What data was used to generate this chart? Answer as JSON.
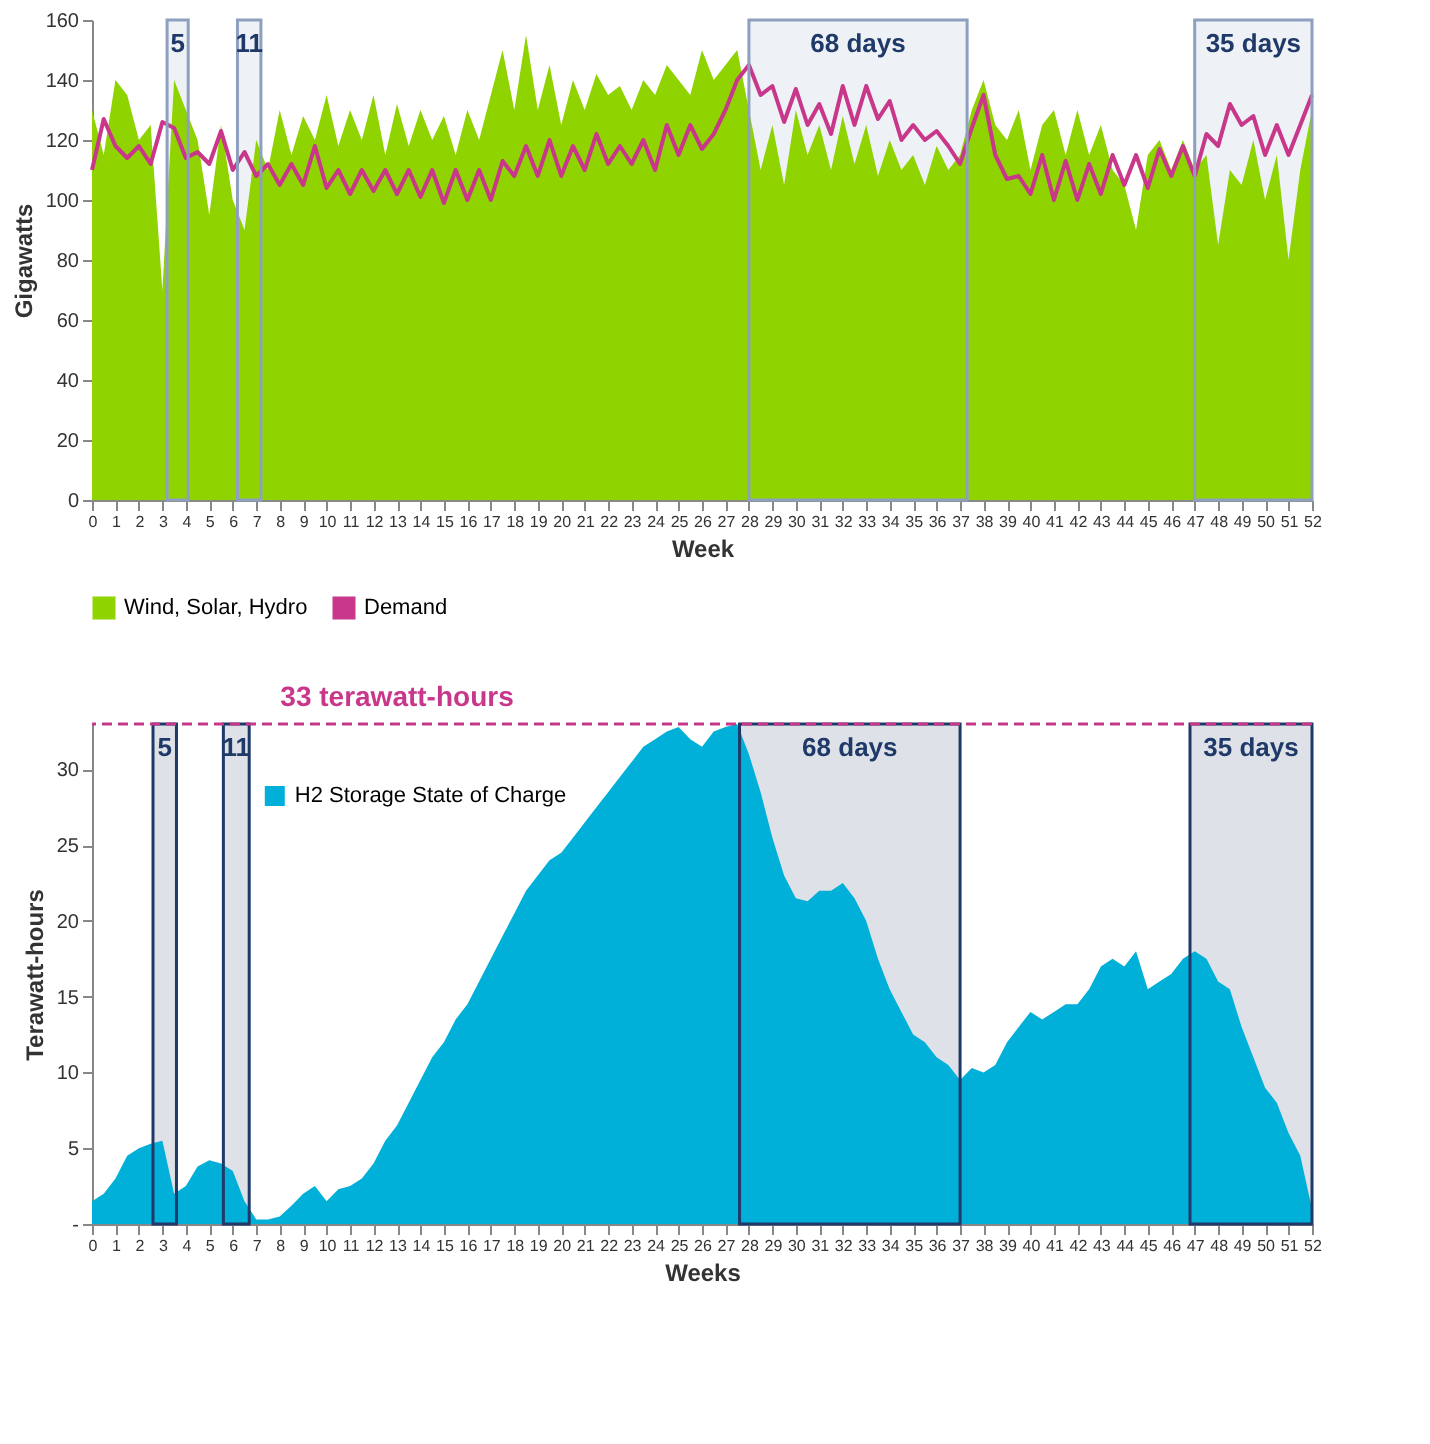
{
  "chart_data": [
    {
      "type": "area",
      "xlabel": "Week",
      "ylabel": "Gigawatts",
      "x": [
        0,
        0.5,
        1,
        1.5,
        2,
        2.5,
        3,
        3.5,
        4,
        4.5,
        5,
        5.5,
        6,
        6.5,
        7,
        7.5,
        8,
        8.5,
        9,
        9.5,
        10,
        10.5,
        11,
        11.5,
        12,
        12.5,
        13,
        13.5,
        14,
        14.5,
        15,
        15.5,
        16,
        16.5,
        17,
        17.5,
        18,
        18.5,
        19,
        19.5,
        20,
        20.5,
        21,
        21.5,
        22,
        22.5,
        23,
        23.5,
        24,
        24.5,
        25,
        25.5,
        26,
        26.5,
        27,
        27.5,
        28,
        28.5,
        29,
        29.5,
        30,
        30.5,
        31,
        31.5,
        32,
        32.5,
        33,
        33.5,
        34,
        34.5,
        35,
        35.5,
        36,
        36.5,
        37,
        37.5,
        38,
        38.5,
        39,
        39.5,
        40,
        40.5,
        41,
        41.5,
        42,
        42.5,
        43,
        43.5,
        44,
        44.5,
        45,
        45.5,
        46,
        46.5,
        47,
        47.5,
        48,
        48.5,
        49,
        49.5,
        50,
        50.5,
        51,
        51.5,
        52
      ],
      "series": [
        {
          "name": "Wind, Solar, Hydro",
          "type": "area",
          "color": "#8fd400",
          "values": [
            130,
            115,
            140,
            135,
            120,
            125,
            70,
            140,
            130,
            120,
            95,
            125,
            100,
            90,
            120,
            110,
            130,
            115,
            128,
            120,
            135,
            118,
            130,
            120,
            135,
            115,
            132,
            118,
            130,
            120,
            128,
            115,
            130,
            120,
            135,
            150,
            130,
            155,
            130,
            145,
            125,
            140,
            130,
            142,
            135,
            138,
            130,
            140,
            135,
            145,
            140,
            135,
            150,
            140,
            145,
            150,
            130,
            110,
            125,
            105,
            130,
            115,
            125,
            110,
            128,
            112,
            125,
            108,
            120,
            110,
            115,
            105,
            118,
            110,
            115,
            130,
            140,
            125,
            120,
            130,
            110,
            125,
            130,
            115,
            130,
            115,
            125,
            110,
            105,
            90,
            115,
            120,
            110,
            120,
            110,
            115,
            85,
            110,
            105,
            120,
            100,
            115,
            80,
            110,
            130
          ]
        },
        {
          "name": "Demand",
          "type": "line",
          "color": "#c8378a",
          "values": [
            110,
            127,
            118,
            114,
            118,
            112,
            126,
            124,
            114,
            116,
            112,
            123,
            110,
            116,
            108,
            112,
            105,
            112,
            105,
            118,
            104,
            110,
            102,
            110,
            103,
            110,
            102,
            110,
            101,
            110,
            99,
            110,
            100,
            110,
            100,
            113,
            108,
            118,
            108,
            120,
            108,
            118,
            110,
            122,
            112,
            118,
            112,
            120,
            110,
            125,
            115,
            125,
            117,
            122,
            130,
            140,
            145,
            135,
            138,
            126,
            137,
            125,
            132,
            122,
            138,
            125,
            138,
            127,
            133,
            120,
            125,
            120,
            123,
            118,
            112,
            124,
            135,
            115,
            107,
            108,
            102,
            115,
            100,
            113,
            100,
            112,
            102,
            115,
            105,
            115,
            104,
            117,
            108,
            118,
            108,
            122,
            118,
            132,
            125,
            128,
            115,
            125,
            115,
            125,
            135
          ]
        }
      ],
      "xlim": [
        0,
        52
      ],
      "xticks": [
        0,
        1,
        2,
        3,
        4,
        5,
        6,
        7,
        8,
        9,
        10,
        11,
        12,
        13,
        14,
        15,
        16,
        17,
        18,
        19,
        20,
        21,
        22,
        23,
        24,
        25,
        26,
        27,
        28,
        29,
        30,
        31,
        32,
        33,
        34,
        35,
        36,
        37,
        38,
        39,
        40,
        41,
        42,
        43,
        44,
        45,
        46,
        47,
        48,
        49,
        50,
        51,
        52
      ],
      "ylim": [
        0,
        160
      ],
      "yticks": [
        0,
        20,
        40,
        60,
        80,
        100,
        120,
        140,
        160
      ],
      "bands": [
        {
          "axis": "x",
          "from": 3.2,
          "to": 4.1,
          "label": "5",
          "color": "#8f9fbf"
        },
        {
          "axis": "x",
          "from": 6.2,
          "to": 7.2,
          "label": "11",
          "color": "#8f9fbf"
        },
        {
          "axis": "x",
          "from": 28,
          "to": 37.3,
          "label": "68 days",
          "color": "#8f9fbf"
        },
        {
          "axis": "x",
          "from": 47,
          "to": 52,
          "label": "35 days",
          "color": "#8f9fbf"
        }
      ],
      "legend": "bottom left",
      "grid": false
    },
    {
      "type": "area",
      "xlabel": "Weeks",
      "ylabel": "Terawatt-hours",
      "x": [
        0,
        0.5,
        1,
        1.5,
        2,
        2.5,
        3,
        3.5,
        4,
        4.5,
        5,
        5.5,
        6,
        6.5,
        7,
        7.5,
        8,
        8.5,
        9,
        9.5,
        10,
        10.5,
        11,
        11.5,
        12,
        12.5,
        13,
        13.5,
        14,
        14.5,
        15,
        15.5,
        16,
        16.5,
        17,
        17.5,
        18,
        18.5,
        19,
        19.5,
        20,
        20.5,
        21,
        21.5,
        22,
        22.5,
        23,
        23.5,
        24,
        24.5,
        25,
        25.5,
        26,
        26.5,
        27,
        27.5,
        28,
        28.5,
        29,
        29.5,
        30,
        30.5,
        31,
        31.5,
        32,
        32.5,
        33,
        33.5,
        34,
        34.5,
        35,
        35.5,
        36,
        36.5,
        37,
        37.5,
        38,
        38.5,
        39,
        39.5,
        40,
        40.5,
        41,
        41.5,
        42,
        42.5,
        43,
        43.5,
        44,
        44.5,
        45,
        45.5,
        46,
        46.5,
        47,
        47.5,
        48,
        48.5,
        49,
        49.5,
        50,
        50.5,
        51,
        51.5,
        52
      ],
      "series": [
        {
          "name": "H2 Storage State of Charge",
          "type": "area",
          "color": "#00b0d8",
          "values": [
            1.5,
            2,
            3,
            4.5,
            5,
            5.3,
            5.5,
            2,
            2.5,
            3.8,
            4.2,
            4,
            3.5,
            1.5,
            0.3,
            0.3,
            0.5,
            1.2,
            2,
            2.5,
            1.5,
            2.3,
            2.5,
            3,
            4,
            5.5,
            6.5,
            8,
            9.5,
            11,
            12,
            13.5,
            14.5,
            16,
            17.5,
            19,
            20.5,
            22,
            23,
            24,
            24.5,
            25.5,
            26.5,
            27.5,
            28.5,
            29.5,
            30.5,
            31.5,
            32,
            32.5,
            32.8,
            32,
            31.5,
            32.5,
            32.8,
            33,
            31,
            28.5,
            25.5,
            23,
            21.5,
            21.3,
            22,
            22,
            22.5,
            21.5,
            20,
            17.5,
            15.5,
            14,
            12.5,
            12,
            11,
            10.5,
            9.5,
            10.3,
            10,
            10.5,
            12,
            13,
            14,
            13.5,
            14,
            14.5,
            14.5,
            15.5,
            17,
            17.5,
            17,
            18,
            15.5,
            16,
            16.5,
            17.5,
            18,
            17.5,
            16,
            15.5,
            13,
            11,
            9,
            8,
            6,
            4.5,
            1
          ]
        }
      ],
      "xlim": [
        0,
        52
      ],
      "xticks": [
        0,
        1,
        2,
        3,
        4,
        5,
        6,
        7,
        8,
        9,
        10,
        11,
        12,
        13,
        14,
        15,
        16,
        17,
        18,
        19,
        20,
        21,
        22,
        23,
        24,
        25,
        26,
        27,
        28,
        29,
        30,
        31,
        32,
        33,
        34,
        35,
        36,
        37,
        38,
        39,
        40,
        41,
        42,
        43,
        44,
        45,
        46,
        47,
        48,
        49,
        50,
        51,
        52
      ],
      "ylim": [
        0,
        33
      ],
      "yticks": [
        {
          "value": 0,
          "label": "-"
        },
        5,
        10,
        15,
        20,
        25,
        30
      ],
      "ref_lines": [
        {
          "axis": "y",
          "value": 33,
          "label": "33 terawatt-hours",
          "color": "#c8378a",
          "line_style": "dashed"
        }
      ],
      "bands": [
        {
          "axis": "x",
          "from": 2.6,
          "to": 3.6,
          "label": "5",
          "color": "#1f3a68"
        },
        {
          "axis": "x",
          "from": 5.6,
          "to": 6.7,
          "label": "11",
          "color": "#1f3a68"
        },
        {
          "axis": "x",
          "from": 27.6,
          "to": 37,
          "label": "68 days",
          "color": "#1f3a68"
        },
        {
          "axis": "x",
          "from": 46.8,
          "to": 52,
          "label": "35 days",
          "color": "#1f3a68"
        }
      ],
      "legend": "top left",
      "grid": false
    }
  ]
}
